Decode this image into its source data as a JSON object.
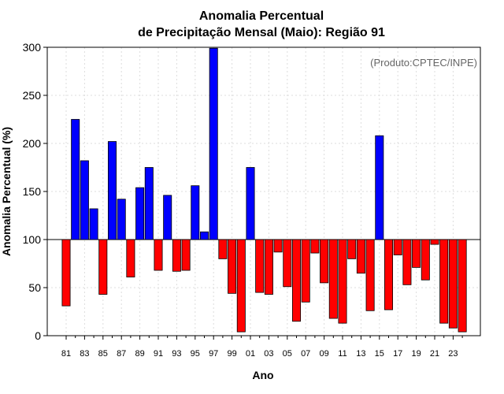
{
  "chart_data": {
    "type": "bar",
    "title_lines": [
      "Anomalia Percentual",
      "de Precipitação Mensal (Maio): Região 91"
    ],
    "xlabel": "Ano",
    "ylabel": "Anomalia Percentual (%)",
    "annotation": "(Produto:CPTEC/INPE)",
    "baseline": 100,
    "ylim": [
      0,
      300
    ],
    "yticks": [
      0,
      50,
      100,
      150,
      200,
      250,
      300
    ],
    "grid": true,
    "categories": [
      "81",
      "82",
      "83",
      "84",
      "85",
      "86",
      "87",
      "88",
      "89",
      "90",
      "91",
      "92",
      "93",
      "94",
      "95",
      "96",
      "97",
      "98",
      "99",
      "00",
      "01",
      "02",
      "03",
      "04",
      "05",
      "06",
      "07",
      "08",
      "09",
      "10",
      "11",
      "12",
      "13",
      "14",
      "15",
      "16",
      "17",
      "18",
      "19",
      "20",
      "21",
      "22",
      "23",
      "24"
    ],
    "xtick_labels": [
      "81",
      "83",
      "85",
      "87",
      "89",
      "91",
      "93",
      "95",
      "97",
      "99",
      "01",
      "03",
      "05",
      "07",
      "09",
      "11",
      "13",
      "15",
      "17",
      "19",
      "21",
      "23"
    ],
    "values": [
      31,
      225,
      182,
      132,
      43,
      202,
      142,
      61,
      154,
      175,
      68,
      146,
      67,
      68,
      156,
      108,
      299,
      80,
      44,
      4,
      175,
      45,
      43,
      87,
      51,
      15,
      35,
      86,
      55,
      18,
      13,
      80,
      65,
      26,
      208,
      27,
      84,
      53,
      71,
      58,
      95,
      13,
      8,
      4
    ],
    "colors": {
      "above": "#0000ff",
      "below": "#ff0000",
      "edge": "#000000",
      "grid": "#dddddd",
      "baseline": "#000000"
    }
  }
}
